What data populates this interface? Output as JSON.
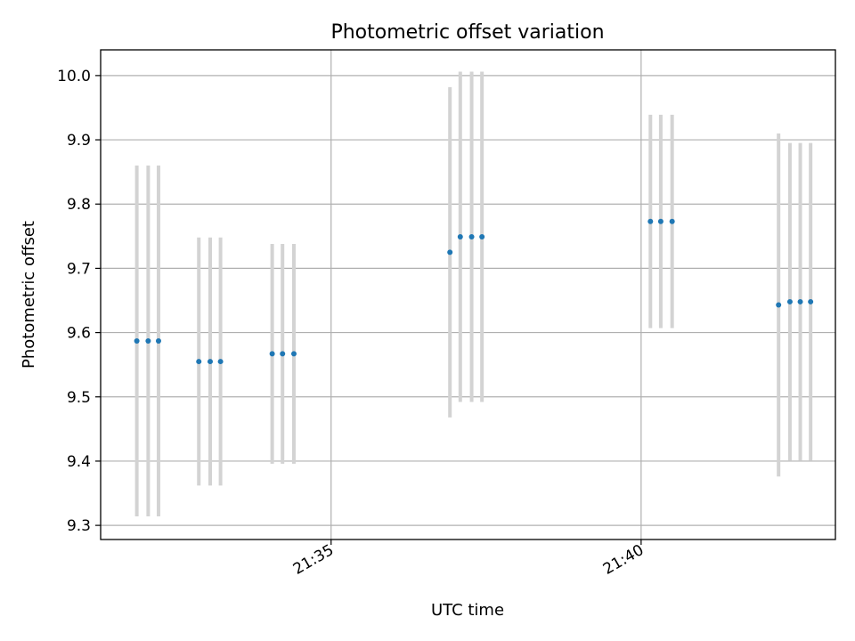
{
  "chart_data": {
    "type": "scatter",
    "title": "Photometric offset variation",
    "xlabel": "UTC time",
    "ylabel": "Photometric offset",
    "x_ticks": [
      "21:35",
      "21:40"
    ],
    "y_ticks": [
      "9.3",
      "9.4",
      "9.5",
      "9.6",
      "9.7",
      "9.8",
      "9.9",
      "10.0"
    ],
    "xlim": [
      "21:31:17",
      "21:43:08"
    ],
    "ylim": [
      9.278,
      10.04
    ],
    "grid": true,
    "colors": {
      "point": "#1f77b4",
      "errorbar": "#d3d3d3",
      "grid": "#b0b0b0"
    },
    "points": [
      {
        "t": "21:31:52",
        "y": 9.587,
        "err": 0.273
      },
      {
        "t": "21:32:03",
        "y": 9.587,
        "err": 0.273
      },
      {
        "t": "21:32:13",
        "y": 9.587,
        "err": 0.273
      },
      {
        "t": "21:32:52",
        "y": 9.555,
        "err": 0.193
      },
      {
        "t": "21:33:03",
        "y": 9.555,
        "err": 0.193
      },
      {
        "t": "21:33:13",
        "y": 9.555,
        "err": 0.193
      },
      {
        "t": "21:34:03",
        "y": 9.567,
        "err": 0.171
      },
      {
        "t": "21:34:13",
        "y": 9.567,
        "err": 0.171
      },
      {
        "t": "21:34:24",
        "y": 9.567,
        "err": 0.171
      },
      {
        "t": "21:36:55",
        "y": 9.725,
        "err": 0.257
      },
      {
        "t": "21:37:05",
        "y": 9.749,
        "err": 0.257
      },
      {
        "t": "21:37:16",
        "y": 9.749,
        "err": 0.257
      },
      {
        "t": "21:37:26",
        "y": 9.749,
        "err": 0.257
      },
      {
        "t": "21:40:09",
        "y": 9.773,
        "err": 0.166
      },
      {
        "t": "21:40:19",
        "y": 9.773,
        "err": 0.166
      },
      {
        "t": "21:40:30",
        "y": 9.773,
        "err": 0.166
      },
      {
        "t": "21:42:13",
        "y": 9.643,
        "err": 0.267
      },
      {
        "t": "21:42:24",
        "y": 9.648,
        "err": 0.247
      },
      {
        "t": "21:42:34",
        "y": 9.648,
        "err": 0.247
      },
      {
        "t": "21:42:44",
        "y": 9.648,
        "err": 0.247
      }
    ]
  }
}
